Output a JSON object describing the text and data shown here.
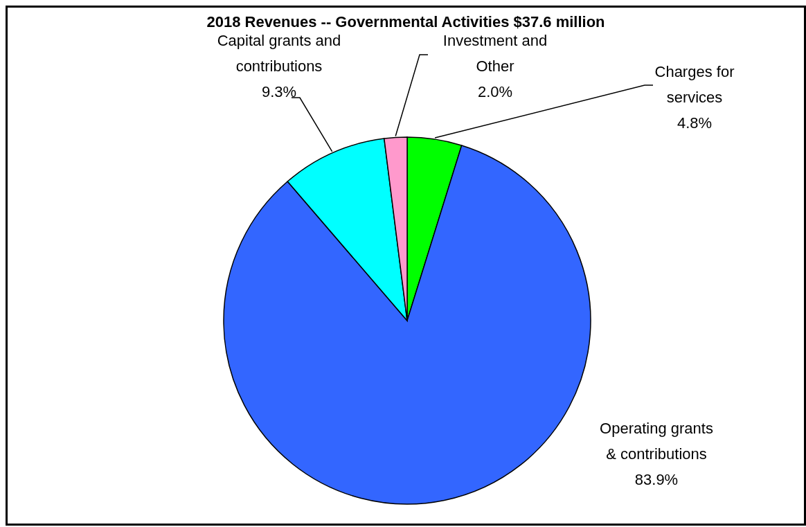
{
  "chart_data": {
    "type": "pie",
    "title": "2018 Revenues -- Governmental Activities $37.6 million",
    "categories": [
      "Charges for services",
      "Operating grants & contributions",
      "Capital grants and contributions",
      "Investment and Other"
    ],
    "values": [
      4.8,
      83.9,
      9.3,
      2.0
    ],
    "value_labels": [
      "4.8%",
      "83.9%",
      "9.3%",
      "2.0%"
    ],
    "colors": [
      "#00ff00",
      "#3366ff",
      "#00ffff",
      "#ff99cc"
    ],
    "legend": false
  }
}
